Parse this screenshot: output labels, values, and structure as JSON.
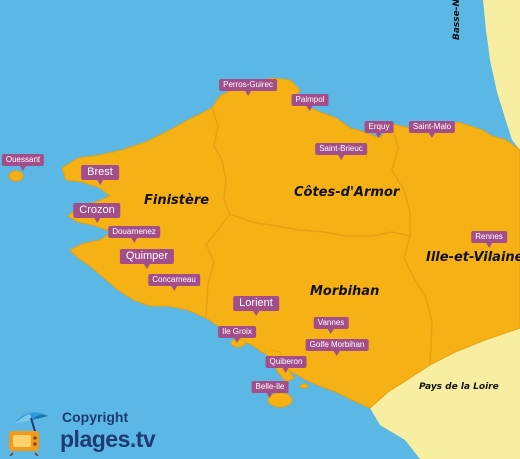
{
  "colors": {
    "sea": "#5bb8e4",
    "land": "#f6b214",
    "neighbour_land": "#f7eea2",
    "border": "#e7a012",
    "city_tag": "#a24e8a",
    "logo_text": "#1f3a72"
  },
  "regions": [
    {
      "name": "Finistère"
    },
    {
      "name": "Côtes-d'Armor"
    },
    {
      "name": "Morbihan"
    },
    {
      "name": "Ille-et-Vilaine"
    }
  ],
  "neighbours": [
    {
      "name": "Basse-Normandie"
    },
    {
      "name": "Pays de la Loire"
    }
  ],
  "cities": [
    {
      "name": "Perros-Guirec",
      "size": "small"
    },
    {
      "name": "Paimpol",
      "size": "small"
    },
    {
      "name": "Erquy",
      "size": "small"
    },
    {
      "name": "Saint-Malo",
      "size": "small"
    },
    {
      "name": "Saint-Brieuc",
      "size": "small"
    },
    {
      "name": "Ouessant",
      "size": "small"
    },
    {
      "name": "Brest",
      "size": "big"
    },
    {
      "name": "Crozon",
      "size": "big"
    },
    {
      "name": "Douarnenez",
      "size": "small"
    },
    {
      "name": "Quimper",
      "size": "big"
    },
    {
      "name": "Concarneau",
      "size": "small"
    },
    {
      "name": "Rennes",
      "size": "small"
    },
    {
      "name": "Lorient",
      "size": "big"
    },
    {
      "name": "Ile Groix",
      "size": "small"
    },
    {
      "name": "Vannes",
      "size": "small"
    },
    {
      "name": "Golfe Morbihan",
      "size": "small"
    },
    {
      "name": "Quiberon",
      "size": "small"
    },
    {
      "name": "Belle-Ile",
      "size": "small"
    }
  ],
  "logo": {
    "copyright": "Copyright",
    "site_name": "plages",
    "site_tld": ".tv",
    "icon": "beach-umbrella-tv-icon"
  }
}
